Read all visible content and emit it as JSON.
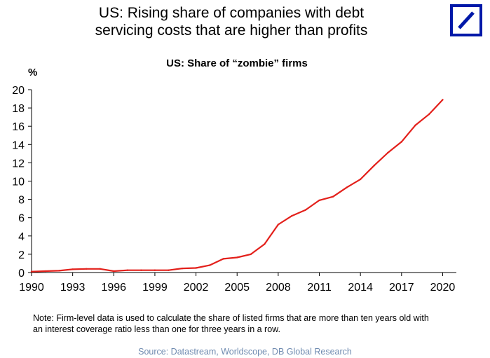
{
  "header": {
    "title_line1": "US: Rising share of companies with debt",
    "title_line2": "servicing costs that are higher than profits"
  },
  "logo": {
    "name": "deutsche-bank-logo",
    "color": "#0018a8"
  },
  "chart_data": {
    "type": "line",
    "title": "US: Share of “zombie” firms",
    "unit_label": "%",
    "xlabel": "",
    "ylabel": "%",
    "xlim": [
      1990,
      2021
    ],
    "ylim": [
      0,
      20
    ],
    "x_ticks": [
      1990,
      1993,
      1996,
      1999,
      2002,
      2005,
      2008,
      2011,
      2014,
      2017,
      2020
    ],
    "y_ticks": [
      0,
      2,
      4,
      6,
      8,
      10,
      12,
      14,
      16,
      18,
      20
    ],
    "grid": false,
    "legend": "none",
    "series": [
      {
        "color": "#e3201b",
        "x": [
          1990,
          1991,
          1992,
          1993,
          1994,
          1995,
          1996,
          1997,
          1998,
          1999,
          2000,
          2001,
          2002,
          2003,
          2004,
          2005,
          2006,
          2007,
          2008,
          2009,
          2010,
          2011,
          2012,
          2013,
          2014,
          2015,
          2016,
          2017,
          2018,
          2019,
          2020
        ],
        "values": [
          0.1,
          0.15,
          0.2,
          0.35,
          0.4,
          0.4,
          0.15,
          0.25,
          0.25,
          0.25,
          0.25,
          0.45,
          0.5,
          0.8,
          1.5,
          1.65,
          2.0,
          3.1,
          5.25,
          6.2,
          6.85,
          7.9,
          8.3,
          9.3,
          10.2,
          11.7,
          13.1,
          14.3,
          16.1,
          17.3,
          18.9
        ]
      }
    ]
  },
  "footer": {
    "note_line1": "Note: Firm-level data is used to calculate the share of listed firms that are more than ten years old with",
    "note_line2": "an interest coverage ratio less than one for three years in a row.",
    "source": "Source: Datastream, Worldscope, DB Global Research"
  }
}
